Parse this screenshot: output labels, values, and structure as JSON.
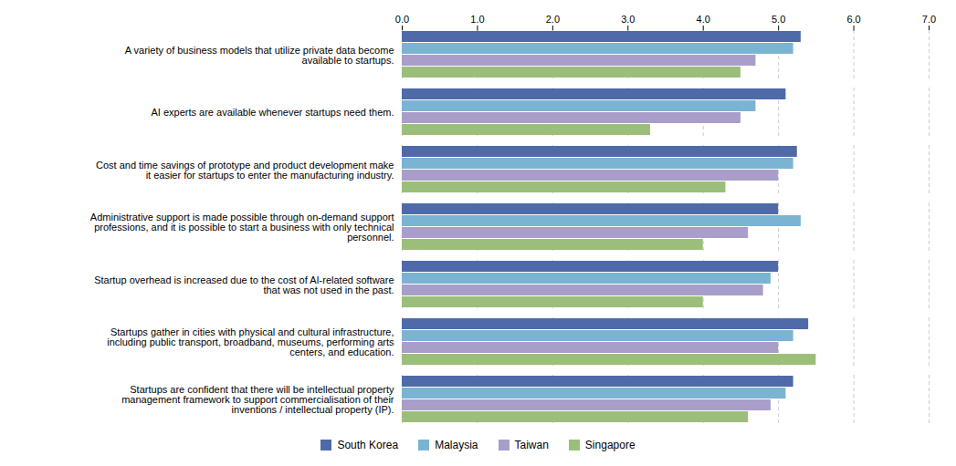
{
  "chart_data": {
    "type": "bar",
    "orientation": "horizontal",
    "categories": [
      "A variety of business models that utilize private data become\navailable to startups.",
      "AI experts are available whenever startups need them.",
      "Cost and time savings of prototype and product development make\nit easier for startups to enter the manufacturing industry.",
      "Administrative support is made possible through on-demand support\nprofessions, and it is possible to start a business with only technical\npersonnel.",
      "Startup overhead is increased due to the cost of AI-related software\nthat was not used in the past.",
      "Startups gather in cities with physical and cultural infrastructure,\nincluding public transport, broadband, museums, performing arts\ncenters, and education.",
      "Startups are confident that there will be intellectual property\nmanagement framework to support commercialisation of their\ninventions / intellectual property (IP)."
    ],
    "series": [
      {
        "name": "South Korea",
        "color": "#4F6AA8",
        "values": [
          5.3,
          5.1,
          5.25,
          5.0,
          5.0,
          5.4,
          5.2
        ]
      },
      {
        "name": "Malaysia",
        "color": "#7BB3D3",
        "values": [
          5.2,
          4.7,
          5.2,
          5.3,
          4.9,
          5.2,
          5.1
        ]
      },
      {
        "name": "Taiwan",
        "color": "#A89EC9",
        "values": [
          4.7,
          4.5,
          5.0,
          4.6,
          4.8,
          5.0,
          4.9
        ]
      },
      {
        "name": "Singapore",
        "color": "#9BBF7A",
        "values": [
          4.5,
          3.3,
          4.3,
          4.0,
          4.0,
          5.5,
          4.6
        ]
      }
    ],
    "xlim": [
      0,
      7
    ],
    "xticks": [
      0,
      1,
      2,
      3,
      4,
      5,
      6,
      7
    ],
    "grid": true,
    "legend": "bottom"
  }
}
